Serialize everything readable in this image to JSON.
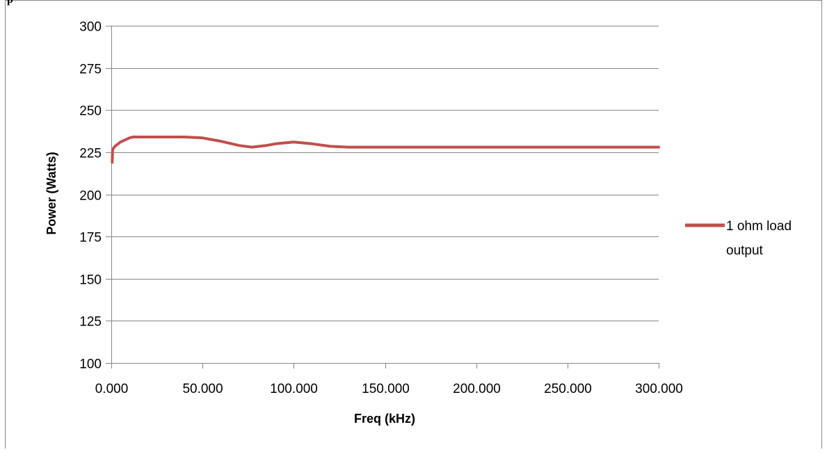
{
  "top_fragment": "p",
  "colors": {
    "series": "#C0504D",
    "grid": "#868686",
    "axis": "#868686",
    "frame": "#868686",
    "background": "#ffffff"
  },
  "chart_data": {
    "type": "line",
    "title": "",
    "xlabel": "Freq (kHz)",
    "ylabel": "Power  (Watts)",
    "xlim": [
      0,
      300
    ],
    "ylim": [
      100,
      300
    ],
    "x_ticks": [
      0,
      50,
      100,
      150,
      200,
      250,
      300
    ],
    "x_tick_labels": [
      "0.000",
      "50.000",
      "100.000",
      "150.000",
      "200.000",
      "250.000",
      "300.000"
    ],
    "y_ticks": [
      100,
      125,
      150,
      175,
      200,
      225,
      250,
      275,
      300
    ],
    "y_tick_labels": [
      "100",
      "125",
      "150",
      "175",
      "200",
      "225",
      "250",
      "275",
      "300"
    ],
    "grid": true,
    "legend_position": "right",
    "legend_lines": [
      "1 ohm load",
      "output"
    ],
    "series": [
      {
        "name": "1 ohm load output",
        "color": "#C0504D",
        "x": [
          0.5,
          0.7,
          1,
          2,
          5,
          10,
          12,
          20,
          30,
          40,
          50,
          60,
          70,
          77,
          85,
          90,
          100,
          110,
          120,
          130,
          140,
          150,
          175,
          200,
          225,
          250,
          275,
          300
        ],
        "y": [
          219,
          226,
          227,
          228.5,
          231,
          233.5,
          234,
          234,
          234,
          234,
          233.5,
          231.5,
          229,
          228,
          229,
          230,
          231,
          230,
          228.5,
          228,
          228,
          228,
          228,
          228,
          228,
          228,
          228,
          228
        ]
      }
    ]
  }
}
